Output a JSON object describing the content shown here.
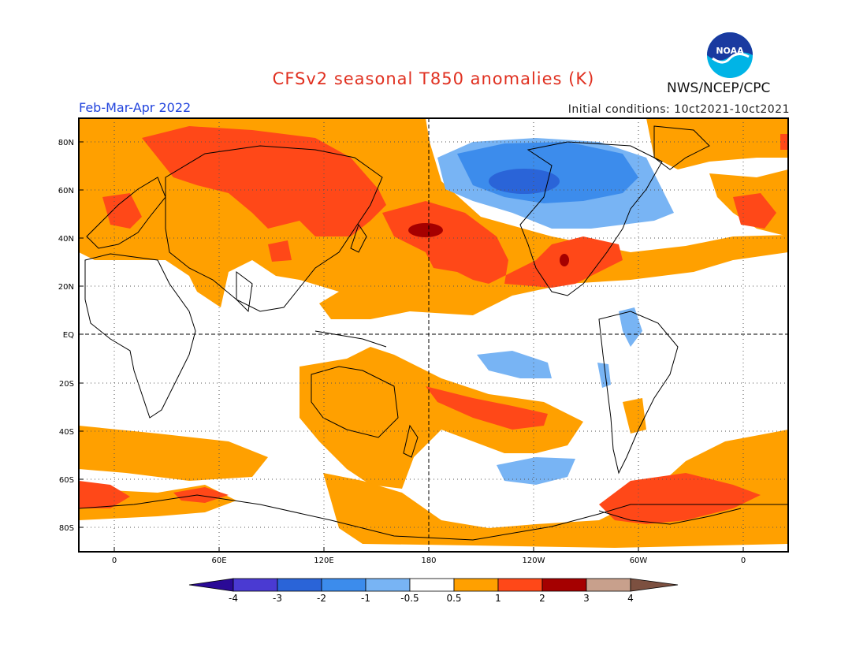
{
  "header": {
    "title": "CFSv2 seasonal T850 anomalies (K)",
    "season": "Feb-Mar-Apr 2022",
    "initial_conditions": "Initial conditions: 10ct2021-10ct2021",
    "agency": "NWS/NCEP/CPC",
    "logo_text": "NOAA"
  },
  "map": {
    "lat_labels": [
      "80N",
      "60N",
      "40N",
      "20N",
      "EQ",
      "20S",
      "40S",
      "60S",
      "80S"
    ],
    "lon_labels": [
      "0",
      "60E",
      "120E",
      "180",
      "120W",
      "60W",
      "0"
    ]
  },
  "colorbar": {
    "tick_labels": [
      "-4",
      "-3",
      "-2",
      "-1",
      "-0.5",
      "0.5",
      "1",
      "2",
      "3",
      "4"
    ],
    "colors": [
      "#2a0a96",
      "#4a3ad2",
      "#2a64d8",
      "#3c8cec",
      "#78b4f4",
      "#ffffff",
      "#ffa000",
      "#ff4818",
      "#a50000",
      "#c8a08c",
      "#7c5040"
    ]
  }
}
